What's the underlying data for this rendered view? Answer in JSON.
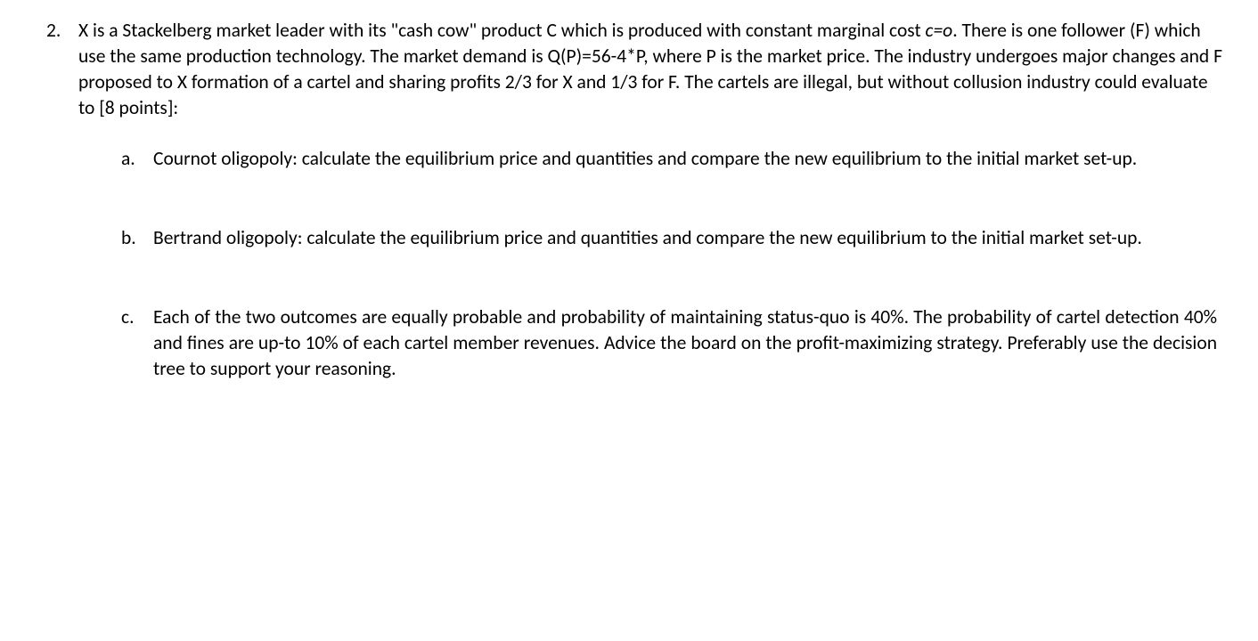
{
  "question": {
    "number": "2.",
    "leadText": "X is a Stackelberg market leader with its \"cash cow\" product C which is produced with constant marginal cost ",
    "italicVar": "c=o",
    "restText": ". There is one follower (F) which use the same production technology. The market demand is Q(P)=56-4*P, where P is the market price. The industry undergoes major changes and F proposed to X formation of a cartel and sharing profits 2/3 for X and 1/3 for F. The cartels are illegal, but without collusion industry could evaluate to [8 points]:",
    "parts": [
      {
        "letter": "a.",
        "text": "Cournot oligopoly: calculate the equilibrium price and quantities and compare the new equilibrium to the initial market set-up."
      },
      {
        "letter": "b.",
        "text": "Bertrand oligopoly: calculate the equilibrium price and quantities and compare the new equilibrium to the initial market set-up."
      },
      {
        "letter": "c.",
        "text": "Each of the two outcomes are equally probable and probability of maintaining status-quo is 40%. The probability of cartel detection 40% and fines are up-to 10% of each cartel member revenues. Advice the board on the profit-maximizing strategy. Preferably use the decision tree to support your reasoning."
      }
    ]
  }
}
